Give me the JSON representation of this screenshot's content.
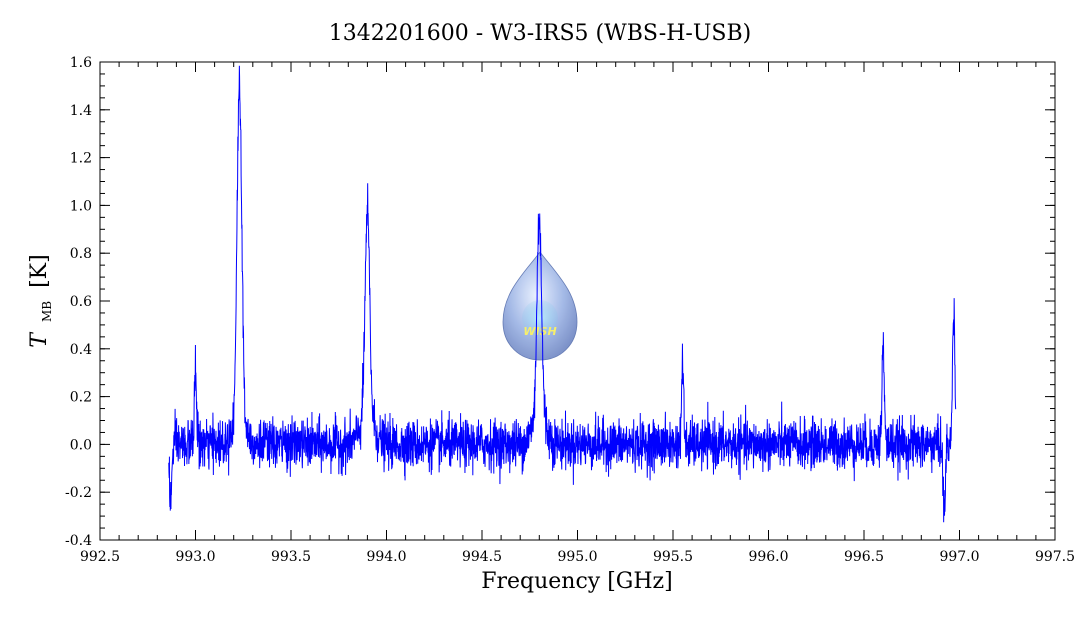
{
  "chart_data": {
    "type": "line",
    "title": "1342201600 - W3-IRS5 (WBS-H-USB)",
    "xlabel": "Frequency [GHz]",
    "ylabel": {
      "symbol": "T",
      "subscript": "MB",
      "unit": "[K]"
    },
    "xlim": [
      992.5,
      997.5
    ],
    "ylim": [
      -0.4,
      1.6
    ],
    "x_ticks": [
      992.5,
      993.0,
      993.5,
      994.0,
      994.5,
      995.0,
      995.5,
      996.0,
      996.5,
      997.0,
      997.5
    ],
    "y_ticks": [
      -0.4,
      -0.2,
      0.0,
      0.2,
      0.4,
      0.6,
      0.8,
      1.0,
      1.2,
      1.4,
      1.6
    ],
    "x_tick_labels": [
      "992.5",
      "993.0",
      "993.5",
      "994.0",
      "994.5",
      "995.0",
      "995.5",
      "996.0",
      "996.5",
      "997.0",
      "997.5"
    ],
    "y_tick_labels": [
      "-0.4",
      "-0.2",
      "0.0",
      "0.2",
      "0.4",
      "0.6",
      "0.8",
      "1.0",
      "1.2",
      "1.4",
      "1.6"
    ],
    "grid": false,
    "series": [
      {
        "color": "#0000ff",
        "x_start": 992.86,
        "x_end": 996.98,
        "noise_rms": 0.05,
        "peaks": [
          {
            "x": 992.87,
            "y": -0.24
          },
          {
            "x": 993.0,
            "y": 0.3
          },
          {
            "x": 993.23,
            "y": 1.4
          },
          {
            "x": 993.9,
            "y": 0.85
          },
          {
            "x": 994.8,
            "y": 0.84
          },
          {
            "x": 995.55,
            "y": 0.32
          },
          {
            "x": 996.6,
            "y": 0.41
          },
          {
            "x": 996.92,
            "y": -0.28
          },
          {
            "x": 996.97,
            "y": 0.58
          }
        ]
      }
    ],
    "watermark_text": "WISH",
    "accent": "#0000ff"
  }
}
